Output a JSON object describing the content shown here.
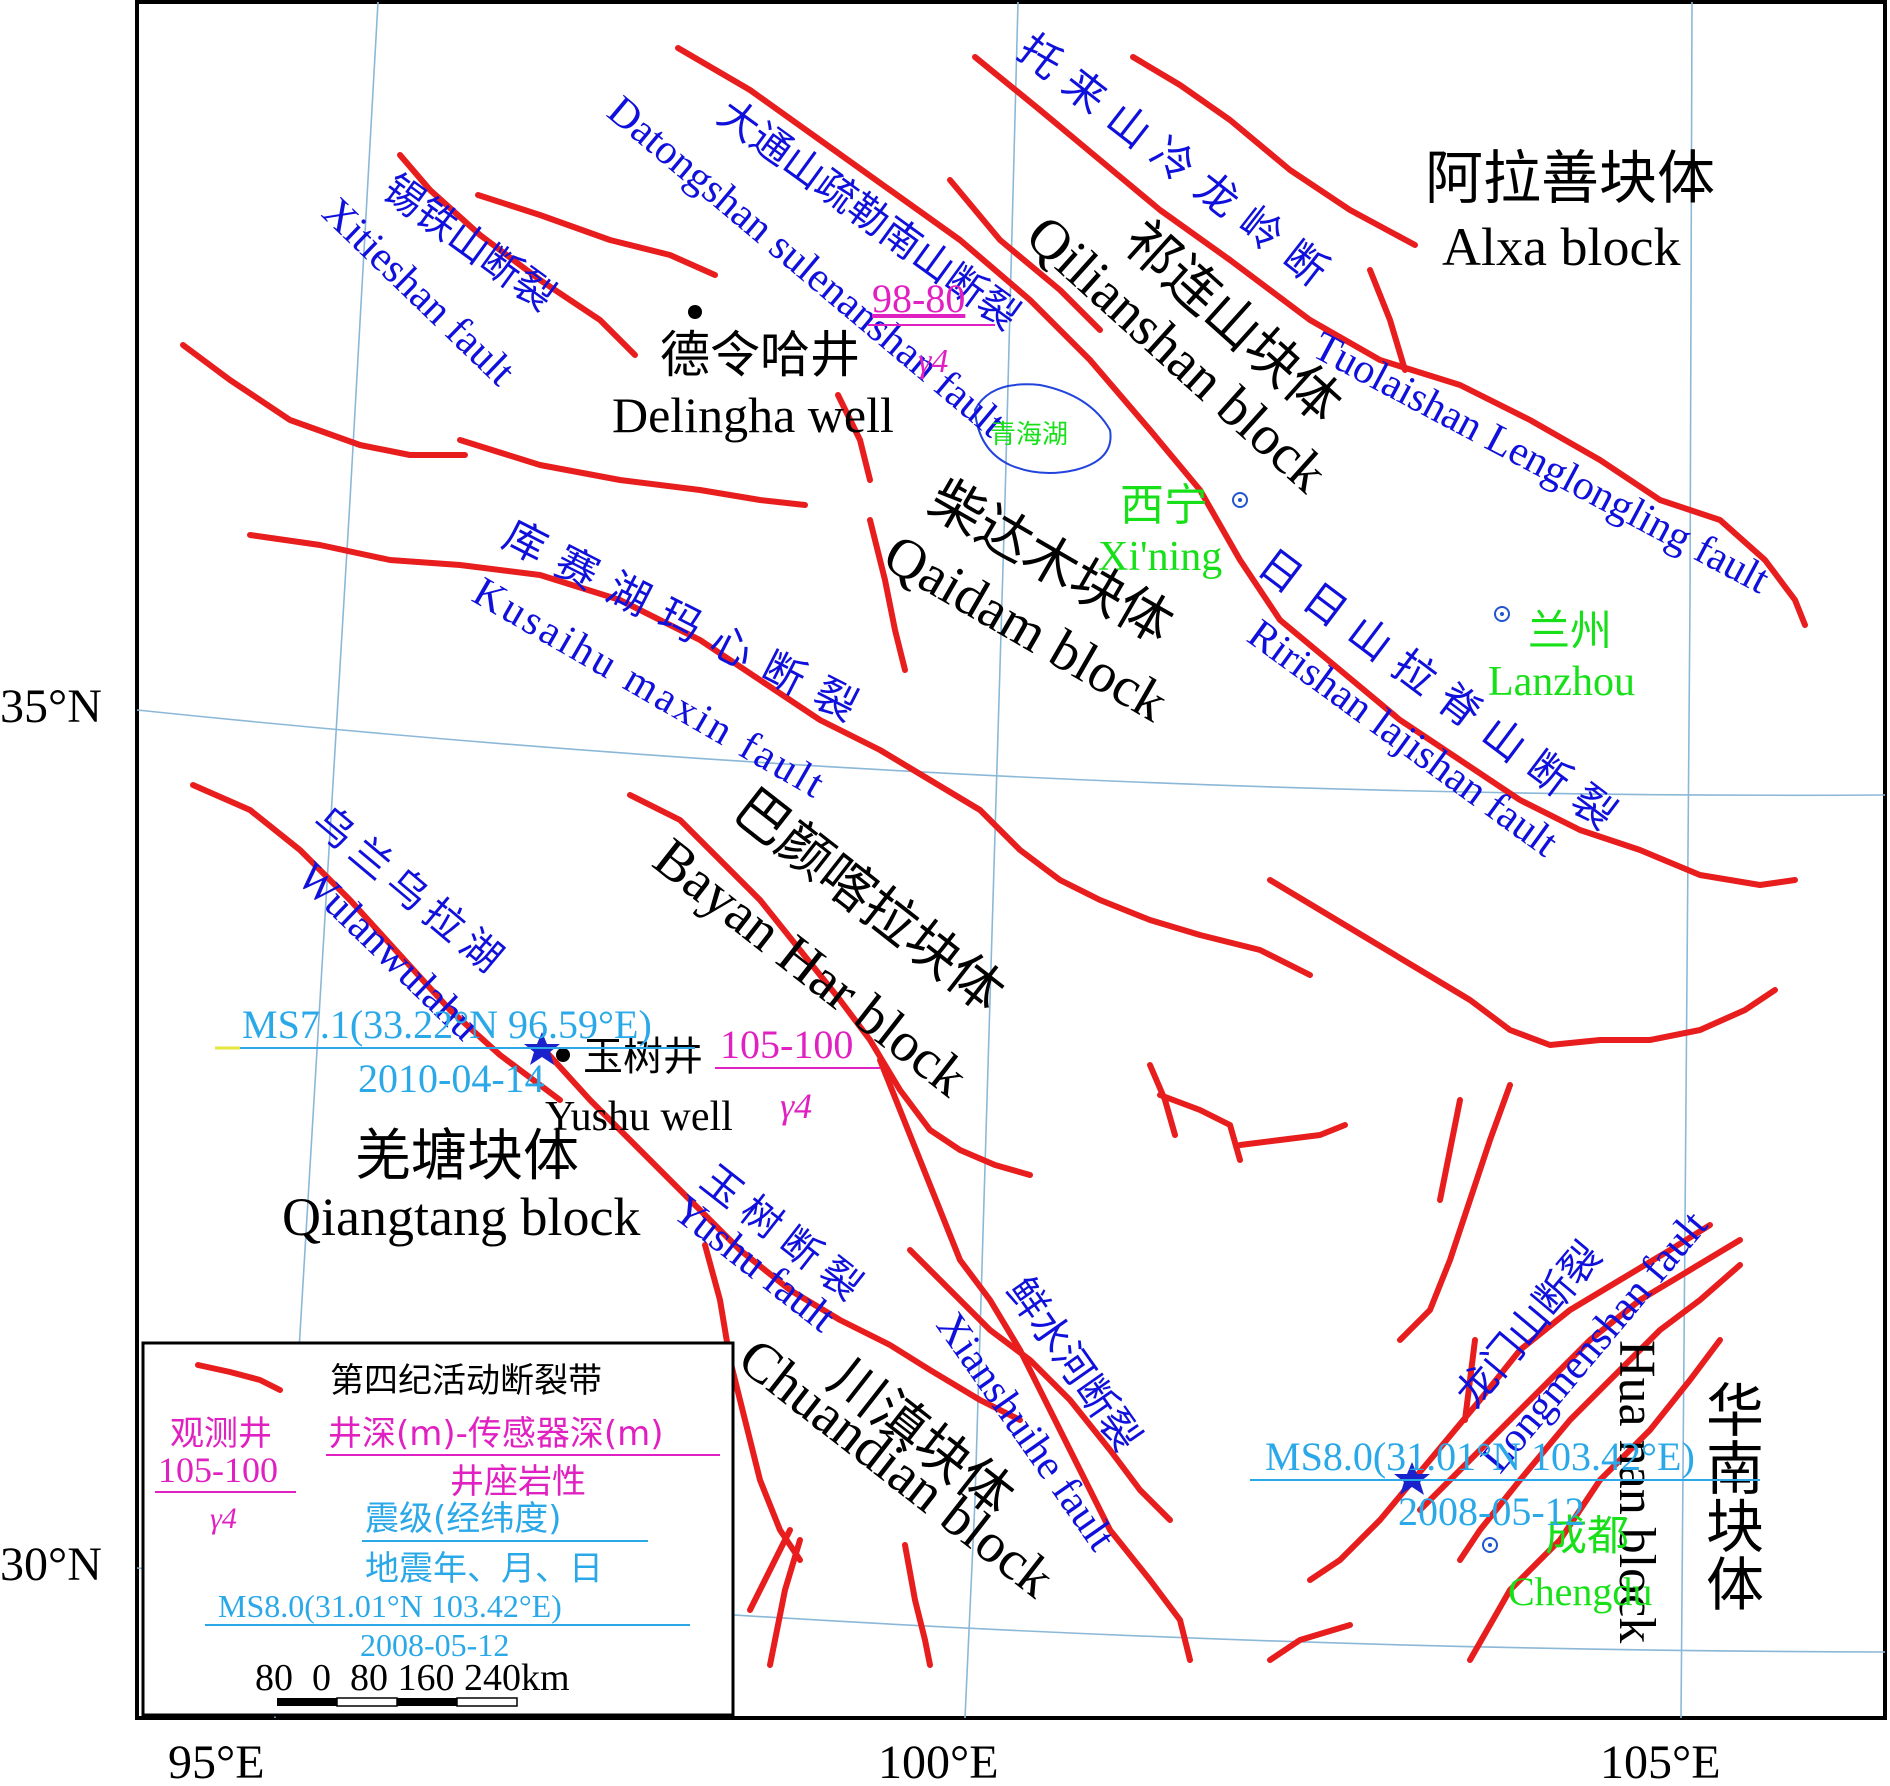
{
  "axes": {
    "lon_ticks": [
      "95°E",
      "100°E",
      "105°E"
    ],
    "lat_ticks": [
      "35°N",
      "30°N"
    ]
  },
  "blocks": {
    "alxa_cn": "阿拉善块体",
    "alxa_en": "Alxa block",
    "qilian_cn": "祁连山块体",
    "qilian_en": "Qilianshan block",
    "qaidam_cn": "柴达木块体",
    "qaidam_en": "Qaidam block",
    "bayan_cn": "巴颜喀拉块体",
    "bayan_en": "Bayan Har block",
    "qiangtang_cn": "羌塘块体",
    "qiangtang_en": "Qiangtang block",
    "chuandian_cn": "川滇块体",
    "chuandian_en": "Chuandian block",
    "huanan_cn": "华南块体",
    "huanan_en": "Hua nan block"
  },
  "faults": {
    "tuolai_cn": "托来山冷龙岭断",
    "tuolai_en": "Tuolaishan Lenglongling fault",
    "datong_cn": "大通山疏勒南山断裂",
    "datong_en": "Datongshan sulenanshan fault",
    "xitie_cn": "锡铁山断裂",
    "xitie_en": "Xitieshan fault",
    "kusai_cn": "库赛湖玛心断裂",
    "kusai_en": "Kusaihu maxin fault",
    "riyue_cn": "日日山拉脊山断裂",
    "riyue_en": "Ririshan lajishan fault",
    "wulan_cn": "乌兰乌拉湖",
    "wulan_en": "Wulanwulahu",
    "yushu_cn": "玉树断裂",
    "yushu_en": "Yushu fault",
    "xianshui_cn": "鲜水河断裂",
    "xianshui_en": "Xianshuihe fault",
    "longmen_cn": "龙门山断裂",
    "longmen_en": "Longmenshan fault"
  },
  "wells": {
    "delingha_cn": "德令哈井",
    "delingha_en": "Delingha well",
    "delingha_depth": "98-80",
    "delingha_rock": "γ4",
    "yushu_cn": "玉树井",
    "yushu_en": "Yushu well",
    "yushu_depth": "105-100",
    "yushu_rock": "γ4"
  },
  "cities": {
    "xining_cn": "西宁",
    "xining_en": "Xi'ning",
    "lanzhou_cn": "兰州",
    "lanzhou_en": "Lanzhou",
    "chengdu_cn": "成都",
    "chengdu_en": "Chengdu",
    "qinghai_lake": "青海湖"
  },
  "quakes": {
    "yushu_mag": "MS7.1(33.22°N 96.59°E)",
    "yushu_date": "2010-04-14",
    "wenchuan_mag": "MS8.0(31.01°N 103.42°E)",
    "wenchuan_date": "2008-05-12"
  },
  "legend": {
    "fault_label": "第四纪活动断裂带",
    "well_label": "观测井",
    "well_example_depth": "105-100",
    "well_example_rock": "γ4",
    "depth_label": "井深(m)-传感器深(m)",
    "rock_label": "井座岩性",
    "mag_label": "震级(经纬度)",
    "date_label": "地震年、月、日",
    "quake_example": "MS8.0(31.01°N 103.42°E)",
    "quake_example_date": "2008-05-12",
    "scale_text": "80  0  80 160 240km"
  },
  "colors": {
    "fault": "#e81e1e",
    "fault_name": "#1010dd",
    "well_info": "#e020c0",
    "quake": "#2aa8e8",
    "city": "#18e018",
    "grid": "#8cb8d8"
  }
}
